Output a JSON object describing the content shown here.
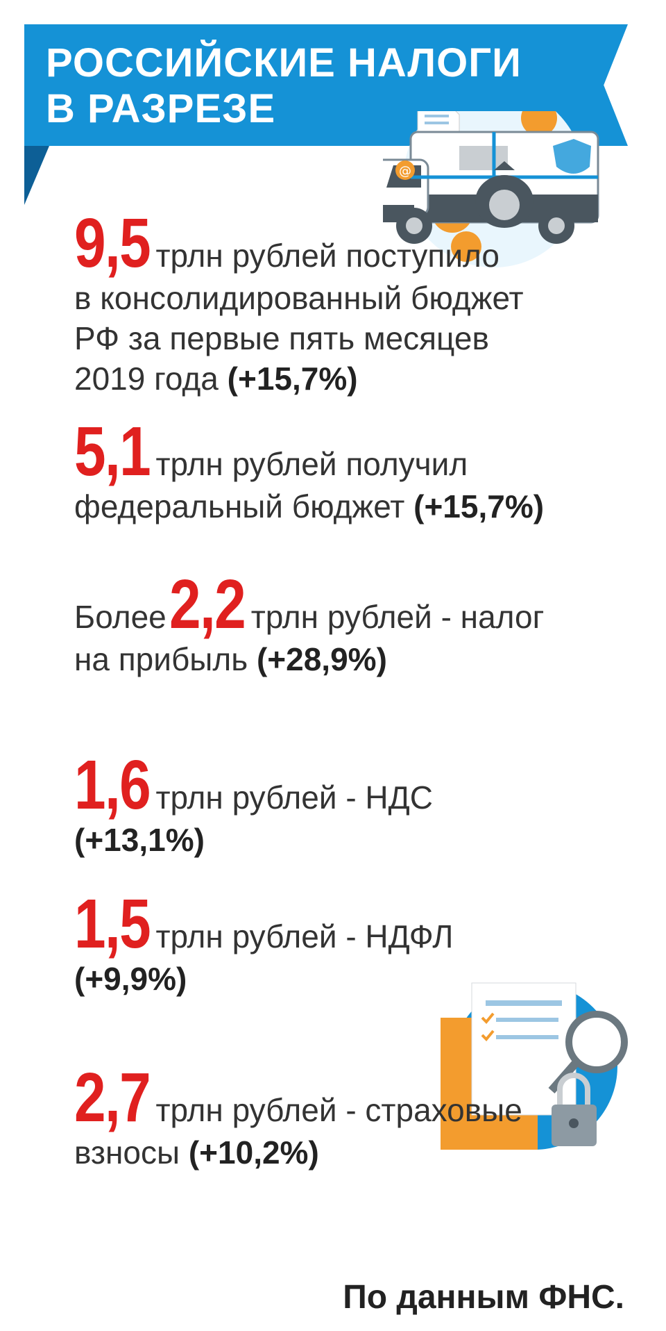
{
  "header": {
    "title_line1": "РОССИЙСКИЕ НАЛОГИ",
    "title_line2": "В РАЗРЕЗЕ"
  },
  "stats": [
    {
      "value": "9,5",
      "text_first": "трлн рублей поступило",
      "text_rest1": "в консолидированный бюджет",
      "text_rest2": "РФ за первые пять месяцев",
      "text_rest3": "2019 года",
      "change": "(+15,7%)"
    },
    {
      "value": "5,1",
      "text_first": "трлн рублей получил",
      "text_rest1": "федеральный бюджет",
      "change": "(+15,7%)"
    },
    {
      "prefix": "Более",
      "value": "2,2",
      "text_first": "трлн рублей - налог",
      "text_rest1": "на прибыль",
      "change": "(+28,9%)"
    },
    {
      "value": "1,6",
      "text_first": "трлн рублей - НДС",
      "change": "(+13,1%)"
    },
    {
      "value": "1,5",
      "text_first": "трлн рублей - НДФЛ",
      "change": "(+9,9%)"
    },
    {
      "value": "2,7",
      "text_first": "трлн рублей - страховые",
      "text_rest1": "взносы",
      "change": "(+10,2%)"
    }
  ],
  "source": "По данным ФНС.",
  "colors": {
    "banner": "#1592d6",
    "accent_number": "#e0201f",
    "orange": "#f39c2e"
  },
  "icons": [
    "tax-van-illustration",
    "document-magnifier-lock-illustration"
  ]
}
